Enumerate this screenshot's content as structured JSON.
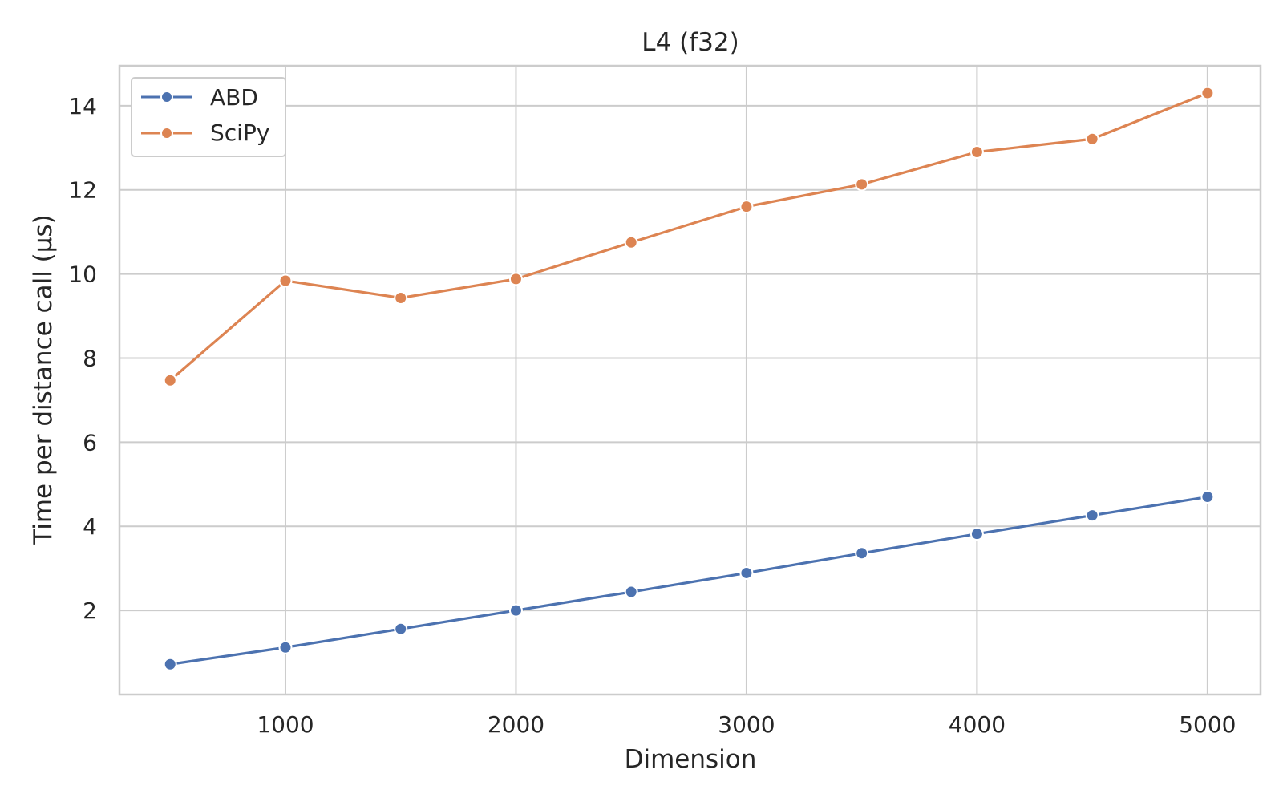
{
  "chart_data": {
    "type": "line",
    "title": "L4 (f32)",
    "xlabel": "Dimension",
    "ylabel": "Time per distance call (µs)",
    "x": [
      500,
      1000,
      1500,
      2000,
      2500,
      3000,
      3500,
      4000,
      4500,
      5000
    ],
    "xlim": [
      280,
      5230
    ],
    "ylim": [
      0.0,
      14.95
    ],
    "xticks": [
      1000,
      2000,
      3000,
      4000,
      5000
    ],
    "xtick_labels": [
      "1000",
      "2000",
      "3000",
      "4000",
      "5000"
    ],
    "yticks": [
      2,
      4,
      6,
      8,
      10,
      12,
      14
    ],
    "ytick_labels": [
      "2",
      "4",
      "6",
      "8",
      "10",
      "12",
      "14"
    ],
    "grid": true,
    "legend_position": "top-left",
    "series": [
      {
        "name": "ABD",
        "color": "#4c72b0",
        "marker": "circle",
        "values": [
          0.72,
          1.12,
          1.56,
          2.0,
          2.44,
          2.89,
          3.36,
          3.82,
          4.26,
          4.7
        ]
      },
      {
        "name": "SciPy",
        "color": "#dd8452",
        "marker": "circle",
        "values": [
          7.47,
          9.84,
          9.43,
          9.88,
          10.75,
          11.6,
          12.13,
          12.9,
          13.21,
          14.3
        ]
      }
    ]
  }
}
